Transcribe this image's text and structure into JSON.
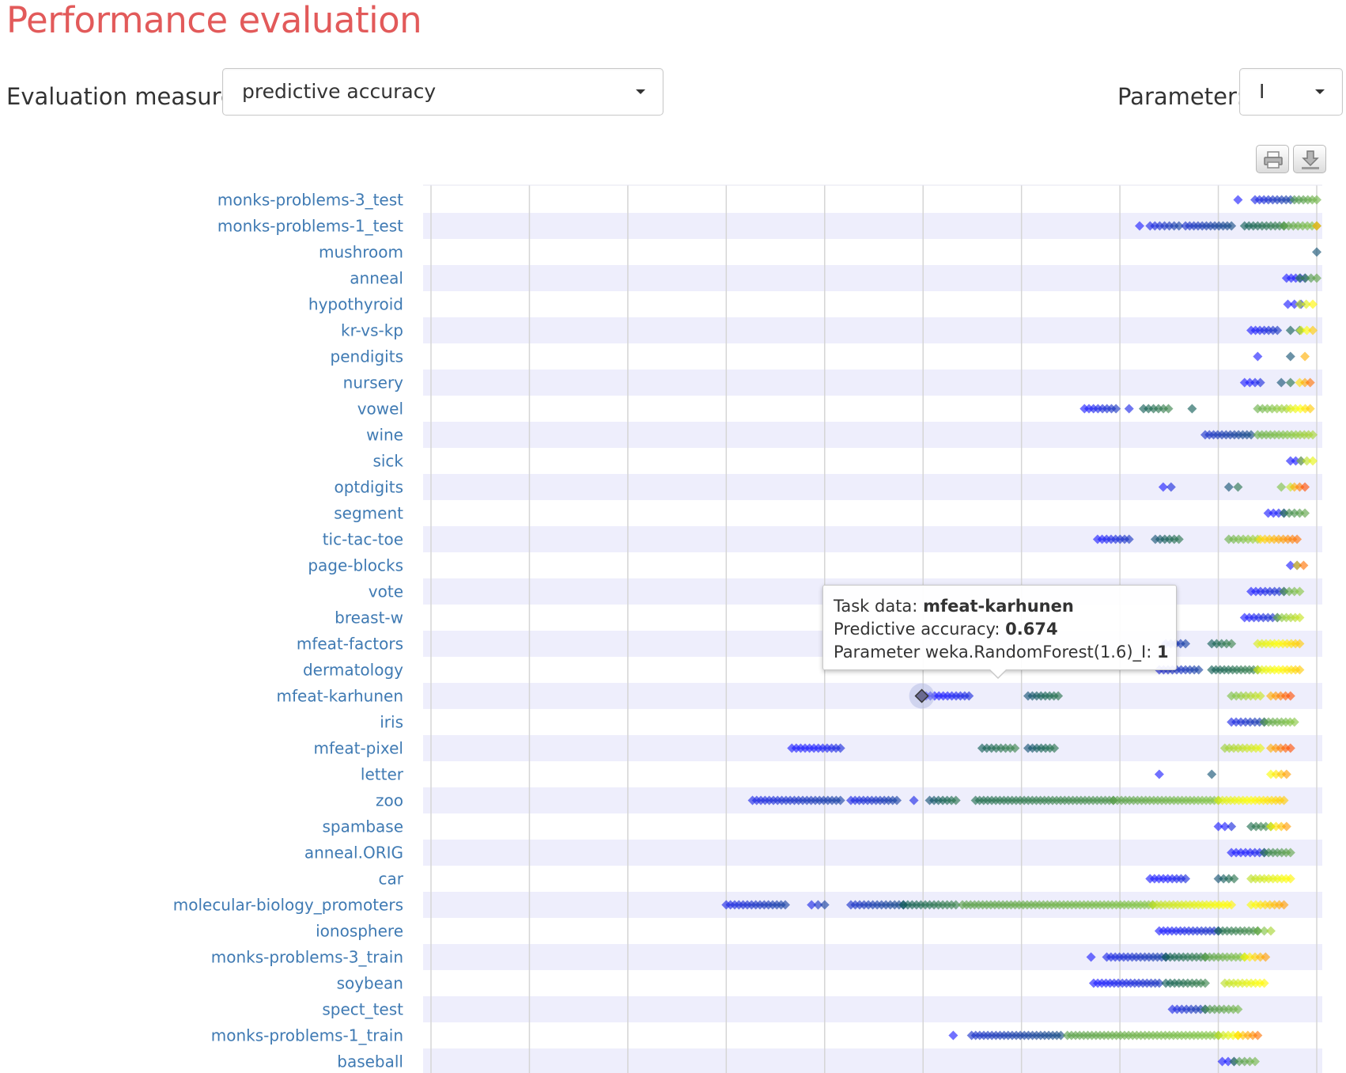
{
  "header": {
    "title": "Performance evaluation",
    "measure_label": "Evaluation measure:",
    "measure_value": "predictive accuracy",
    "parameter_label": "Parameter:",
    "parameter_value": "I"
  },
  "toolbar": {
    "print_icon": "printer-icon",
    "download_icon": "download-icon"
  },
  "tooltip": {
    "task_label": "Task data:",
    "task_value": "mfeat-karhunen",
    "metric_label": "Predictive accuracy:",
    "metric_value": "0.674",
    "param_label": "Parameter weka.RandomForest(1.6)_I:",
    "param_value": "1"
  },
  "colors": {
    "title": "#e25a5a",
    "row_band": "#eeeefc",
    "tick_label": "#3f7ab3",
    "scale_low": "#1a1aff",
    "scale_mid": "#0d5c4e",
    "scale_mid2": "#7fc241",
    "scale_high1": "#ffff00",
    "scale_high2": "#ff4d00"
  },
  "chart_data": {
    "type": "scatter",
    "orientation": "horizontal",
    "title": "",
    "xlabel": "",
    "ylabel": "",
    "xlim": [
      0.3,
      1.0
    ],
    "gridlines_x": [
      0.3,
      0.375,
      0.45,
      0.525,
      0.6,
      0.675,
      0.75,
      0.825,
      0.9,
      0.975
    ],
    "x_tick_labels_visible": false,
    "grid": true,
    "marker": "diamond",
    "color_encoding": "parameter value (blue = low, teal, green, yellow, orange = high)",
    "categories": [
      "monks-problems-3_test",
      "monks-problems-1_test",
      "mushroom",
      "anneal",
      "hypothyroid",
      "kr-vs-kp",
      "pendigits",
      "nursery",
      "vowel",
      "wine",
      "sick",
      "optdigits",
      "segment",
      "tic-tac-toe",
      "page-blocks",
      "vote",
      "breast-w",
      "mfeat-factors",
      "dermatology",
      "mfeat-karhunen",
      "iris",
      "mfeat-pixel",
      "letter",
      "zoo",
      "spambase",
      "anneal.ORIG",
      "car",
      "molecular-biology_promoters",
      "ionosphere",
      "monks-problems-3_train",
      "soybean",
      "spect_test",
      "monks-problems-1_train",
      "baseball"
    ],
    "series": [
      {
        "category": "monks-problems-3_test",
        "clusters": [
          {
            "x": [
              0.915
            ],
            "t": 0.0
          },
          {
            "x": [
              0.928,
              0.955
            ],
            "t": 0.1
          },
          {
            "x": [
              0.958,
              0.975
            ],
            "t": 0.5
          }
        ]
      },
      {
        "category": "monks-problems-1_test",
        "clusters": [
          {
            "x": [
              0.84
            ],
            "t": 0.0
          },
          {
            "x": [
              0.848,
              0.87
            ],
            "t": 0.1
          },
          {
            "x": [
              0.875,
              0.91
            ],
            "t": 0.15
          },
          {
            "x": [
              0.92,
              0.95
            ],
            "t": 0.35
          },
          {
            "x": [
              0.95,
              0.975
            ],
            "t": 0.55
          },
          {
            "x": [
              0.975
            ],
            "t": 0.95
          }
        ]
      },
      {
        "category": "mushroom",
        "clusters": [
          {
            "x": [
              0.975
            ],
            "t": 0.3
          }
        ]
      },
      {
        "category": "anneal",
        "clusters": [
          {
            "x": [
              0.952,
              0.966
            ],
            "t": 0.0
          },
          {
            "x": [
              0.962,
              0.975
            ],
            "t": 0.45
          }
        ]
      },
      {
        "category": "hypothyroid",
        "clusters": [
          {
            "x": [
              0.953,
              0.963
            ],
            "t": 0.0
          },
          {
            "x": [
              0.962,
              0.972
            ],
            "t": 0.75
          }
        ]
      },
      {
        "category": "kr-vs-kp",
        "clusters": [
          {
            "x": [
              0.925,
              0.945
            ],
            "t": 0.05
          },
          {
            "x": [
              0.955,
              0.962
            ],
            "t": 0.35
          },
          {
            "x": [
              0.963,
              0.972
            ],
            "t": 0.8
          }
        ]
      },
      {
        "category": "pendigits",
        "clusters": [
          {
            "x": [
              0.93
            ],
            "t": 0.0
          },
          {
            "x": [
              0.955
            ],
            "t": 0.3
          },
          {
            "x": [
              0.966
            ],
            "t": 0.95
          }
        ]
      },
      {
        "category": "nursery",
        "clusters": [
          {
            "x": [
              0.92,
              0.932
            ],
            "t": 0.0
          },
          {
            "x": [
              0.948,
              0.955
            ],
            "t": 0.3
          },
          {
            "x": [
              0.962,
              0.97
            ],
            "t": 0.9
          }
        ]
      },
      {
        "category": "vowel",
        "clusters": [
          {
            "x": [
              0.798,
              0.822
            ],
            "t": 0.05
          },
          {
            "x": [
              0.832
            ],
            "t": 0.1
          },
          {
            "x": [
              0.843,
              0.862
            ],
            "t": 0.35
          },
          {
            "x": [
              0.88
            ],
            "t": 0.35
          },
          {
            "x": [
              0.93,
              0.952
            ],
            "t": 0.6
          },
          {
            "x": [
              0.955,
              0.97
            ],
            "t": 0.8
          }
        ]
      },
      {
        "category": "wine",
        "clusters": [
          {
            "x": [
              0.89,
              0.925
            ],
            "t": 0.15
          },
          {
            "x": [
              0.93,
              0.972
            ],
            "t": 0.6
          }
        ]
      },
      {
        "category": "sick",
        "clusters": [
          {
            "x": [
              0.955,
              0.963
            ],
            "t": 0.0
          },
          {
            "x": [
              0.963,
              0.972
            ],
            "t": 0.7
          }
        ]
      },
      {
        "category": "optdigits",
        "clusters": [
          {
            "x": [
              0.858,
              0.864
            ],
            "t": 0.0
          },
          {
            "x": [
              0.908,
              0.915
            ],
            "t": 0.3
          },
          {
            "x": [
              0.948,
              0.955
            ],
            "t": 0.65
          },
          {
            "x": [
              0.958,
              0.966
            ],
            "t": 0.95
          }
        ]
      },
      {
        "category": "segment",
        "clusters": [
          {
            "x": [
              0.938,
              0.95
            ],
            "t": 0.0
          },
          {
            "x": [
              0.95,
              0.966
            ],
            "t": 0.45
          }
        ]
      },
      {
        "category": "tic-tac-toe",
        "clusters": [
          {
            "x": [
              0.808,
              0.832
            ],
            "t": 0.05
          },
          {
            "x": [
              0.852,
              0.87
            ],
            "t": 0.3
          },
          {
            "x": [
              0.908,
              0.93
            ],
            "t": 0.6
          },
          {
            "x": [
              0.932,
              0.96
            ],
            "t": 0.9
          }
        ]
      },
      {
        "category": "page-blocks",
        "clusters": [
          {
            "x": [
              0.955,
              0.96
            ],
            "t": 0.0
          },
          {
            "x": [
              0.96,
              0.965
            ],
            "t": 0.9
          }
        ]
      },
      {
        "category": "vote",
        "clusters": [
          {
            "x": [
              0.925,
              0.95
            ],
            "t": 0.05
          },
          {
            "x": [
              0.95,
              0.962
            ],
            "t": 0.55
          }
        ]
      },
      {
        "category": "breast-w",
        "clusters": [
          {
            "x": [
              0.92,
              0.945
            ],
            "t": 0.05
          },
          {
            "x": [
              0.945,
              0.962
            ],
            "t": 0.65
          }
        ]
      },
      {
        "category": "mfeat-factors",
        "clusters": [
          {
            "x": [
              0.86,
              0.875
            ],
            "t": 0.1
          },
          {
            "x": [
              0.895,
              0.91
            ],
            "t": 0.35
          },
          {
            "x": [
              0.93,
              0.962
            ],
            "t": 0.8
          }
        ]
      },
      {
        "category": "dermatology",
        "clusters": [
          {
            "x": [
              0.855,
              0.885
            ],
            "t": 0.1
          },
          {
            "x": [
              0.895,
              0.93
            ],
            "t": 0.35
          },
          {
            "x": [
              0.93,
              0.962
            ],
            "t": 0.8
          }
        ]
      },
      {
        "category": "mfeat-karhunen",
        "clusters": [
          {
            "x": [
              0.674,
              0.71
            ],
            "t": 0.0
          },
          {
            "x": [
              0.755,
              0.778
            ],
            "t": 0.3
          },
          {
            "x": [
              0.91,
              0.932
            ],
            "t": 0.65
          },
          {
            "x": [
              0.94,
              0.955
            ],
            "t": 0.95
          }
        ]
      },
      {
        "category": "iris",
        "clusters": [
          {
            "x": [
              0.91,
              0.935
            ],
            "t": 0.1
          },
          {
            "x": [
              0.935,
              0.958
            ],
            "t": 0.55
          }
        ]
      },
      {
        "category": "mfeat-pixel",
        "clusters": [
          {
            "x": [
              0.575,
              0.612
            ],
            "t": 0.0
          },
          {
            "x": [
              0.72,
              0.745
            ],
            "t": 0.35
          },
          {
            "x": [
              0.755,
              0.775
            ],
            "t": 0.3
          },
          {
            "x": [
              0.905,
              0.932
            ],
            "t": 0.7
          },
          {
            "x": [
              0.94,
              0.955
            ],
            "t": 0.95
          }
        ]
      },
      {
        "category": "letter",
        "clusters": [
          {
            "x": [
              0.855
            ],
            "t": 0.0
          },
          {
            "x": [
              0.895
            ],
            "t": 0.3
          },
          {
            "x": [
              0.94,
              0.952
            ],
            "t": 0.85
          }
        ]
      },
      {
        "category": "zoo",
        "clusters": [
          {
            "x": [
              0.545,
              0.612
            ],
            "t": 0.1
          },
          {
            "x": [
              0.62,
              0.655
            ],
            "t": 0.1
          },
          {
            "x": [
              0.668
            ],
            "t": 0.1
          },
          {
            "x": [
              0.68,
              0.7
            ],
            "t": 0.3
          },
          {
            "x": [
              0.715,
              0.82
            ],
            "t": 0.4
          },
          {
            "x": [
              0.82,
              0.9
            ],
            "t": 0.55
          },
          {
            "x": [
              0.9,
              0.95
            ],
            "t": 0.8
          }
        ]
      },
      {
        "category": "spambase",
        "clusters": [
          {
            "x": [
              0.9,
              0.91
            ],
            "t": 0.0
          },
          {
            "x": [
              0.925,
              0.94
            ],
            "t": 0.4
          },
          {
            "x": [
              0.94,
              0.952
            ],
            "t": 0.85
          }
        ]
      },
      {
        "category": "anneal.ORIG",
        "clusters": [
          {
            "x": [
              0.91,
              0.935
            ],
            "t": 0.0
          },
          {
            "x": [
              0.935,
              0.955
            ],
            "t": 0.45
          }
        ]
      },
      {
        "category": "car",
        "clusters": [
          {
            "x": [
              0.848,
              0.875
            ],
            "t": 0.0
          },
          {
            "x": [
              0.9,
              0.912
            ],
            "t": 0.3
          },
          {
            "x": [
              0.925,
              0.955
            ],
            "t": 0.75
          }
        ]
      },
      {
        "category": "molecular-biology_promoters",
        "clusters": [
          {
            "x": [
              0.525,
              0.57
            ],
            "t": 0.1
          },
          {
            "x": [
              0.59,
              0.6
            ],
            "t": 0.1
          },
          {
            "x": [
              0.62,
              0.66
            ],
            "t": 0.15
          },
          {
            "x": [
              0.66,
              0.7
            ],
            "t": 0.35
          },
          {
            "x": [
              0.705,
              0.85
            ],
            "t": 0.55
          },
          {
            "x": [
              0.85,
              0.91
            ],
            "t": 0.75
          },
          {
            "x": [
              0.925,
              0.95
            ],
            "t": 0.85
          }
        ]
      },
      {
        "category": "ionosphere",
        "clusters": [
          {
            "x": [
              0.855,
              0.9
            ],
            "t": 0.05
          },
          {
            "x": [
              0.9,
              0.93
            ],
            "t": 0.4
          },
          {
            "x": [
              0.93,
              0.94
            ],
            "t": 0.6
          }
        ]
      },
      {
        "category": "monks-problems-3_train",
        "clusters": [
          {
            "x": [
              0.803
            ],
            "t": 0.05
          },
          {
            "x": [
              0.815,
              0.86
            ],
            "t": 0.1
          },
          {
            "x": [
              0.86,
              0.89
            ],
            "t": 0.35
          },
          {
            "x": [
              0.89,
              0.92
            ],
            "t": 0.55
          },
          {
            "x": [
              0.92,
              0.936
            ],
            "t": 0.85
          }
        ]
      },
      {
        "category": "soybean",
        "clusters": [
          {
            "x": [
              0.805,
              0.855
            ],
            "t": 0.05
          },
          {
            "x": [
              0.86,
              0.89
            ],
            "t": 0.35
          },
          {
            "x": [
              0.905,
              0.935
            ],
            "t": 0.75
          }
        ]
      },
      {
        "category": "spect_test",
        "clusters": [
          {
            "x": [
              0.865,
              0.89
            ],
            "t": 0.1
          },
          {
            "x": [
              0.89,
              0.915
            ],
            "t": 0.5
          }
        ]
      },
      {
        "category": "monks-problems-1_train",
        "clusters": [
          {
            "x": [
              0.698
            ],
            "t": 0.05
          },
          {
            "x": [
              0.712,
              0.78
            ],
            "t": 0.15
          },
          {
            "x": [
              0.785,
              0.9
            ],
            "t": 0.55
          },
          {
            "x": [
              0.9,
              0.915
            ],
            "t": 0.75
          },
          {
            "x": [
              0.915,
              0.93
            ],
            "t": 0.9
          }
        ]
      },
      {
        "category": "baseball",
        "clusters": [
          {
            "x": [
              0.903,
              0.912
            ],
            "t": 0.0
          },
          {
            "x": [
              0.912,
              0.928
            ],
            "t": 0.5
          }
        ]
      }
    ],
    "highlighted_point": {
      "category": "mfeat-karhunen",
      "x": 0.674,
      "parameter": 1
    }
  }
}
